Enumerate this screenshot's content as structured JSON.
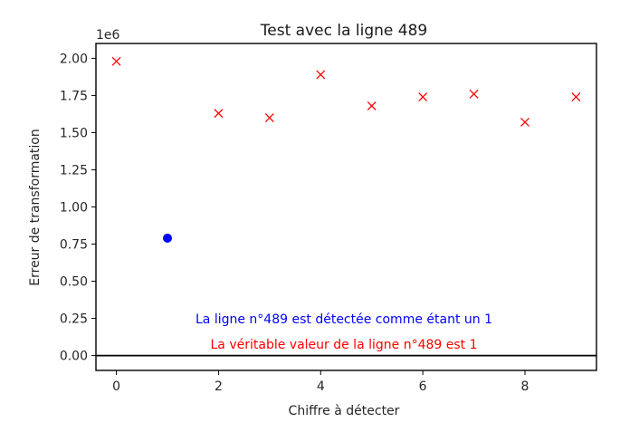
{
  "chart_data": {
    "type": "scatter",
    "title": "Test avec la ligne 489",
    "xlabel": "Chiffre à détecter",
    "ylabel": "Erreur de transformation",
    "y_offset_label": "1e6",
    "xlim": [
      -0.4,
      9.4
    ],
    "ylim": [
      -100000,
      2100000
    ],
    "x_ticks": [
      0,
      2,
      4,
      6,
      8
    ],
    "x_tick_labels": [
      "0",
      "2",
      "4",
      "6",
      "8"
    ],
    "y_ticks": [
      0,
      250000,
      500000,
      750000,
      1000000,
      1250000,
      1500000,
      1750000,
      2000000
    ],
    "y_tick_labels": [
      "0.00",
      "0.25",
      "0.50",
      "0.75",
      "1.00",
      "1.25",
      "1.50",
      "1.75",
      "2.00"
    ],
    "grid": false,
    "horizontal_line_y": 0,
    "series": [
      {
        "marker": "x",
        "color": "#ff0000",
        "points": [
          {
            "x": 0,
            "y": 1980000
          },
          {
            "x": 2,
            "y": 1630000
          },
          {
            "x": 3,
            "y": 1600000
          },
          {
            "x": 4,
            "y": 1890000
          },
          {
            "x": 5,
            "y": 1680000
          },
          {
            "x": 6,
            "y": 1740000
          },
          {
            "x": 7,
            "y": 1760000
          },
          {
            "x": 8,
            "y": 1570000
          },
          {
            "x": 9,
            "y": 1740000
          }
        ]
      },
      {
        "marker": "circle",
        "color": "#0000ff",
        "points": [
          {
            "x": 1,
            "y": 790000
          }
        ]
      }
    ],
    "annotations": [
      {
        "text": "La ligne n°489 est détectée comme étant un 1",
        "color": "#0000ff"
      },
      {
        "text": "La véritable valeur de la ligne n°489 est 1",
        "color": "#ff0000"
      }
    ]
  }
}
